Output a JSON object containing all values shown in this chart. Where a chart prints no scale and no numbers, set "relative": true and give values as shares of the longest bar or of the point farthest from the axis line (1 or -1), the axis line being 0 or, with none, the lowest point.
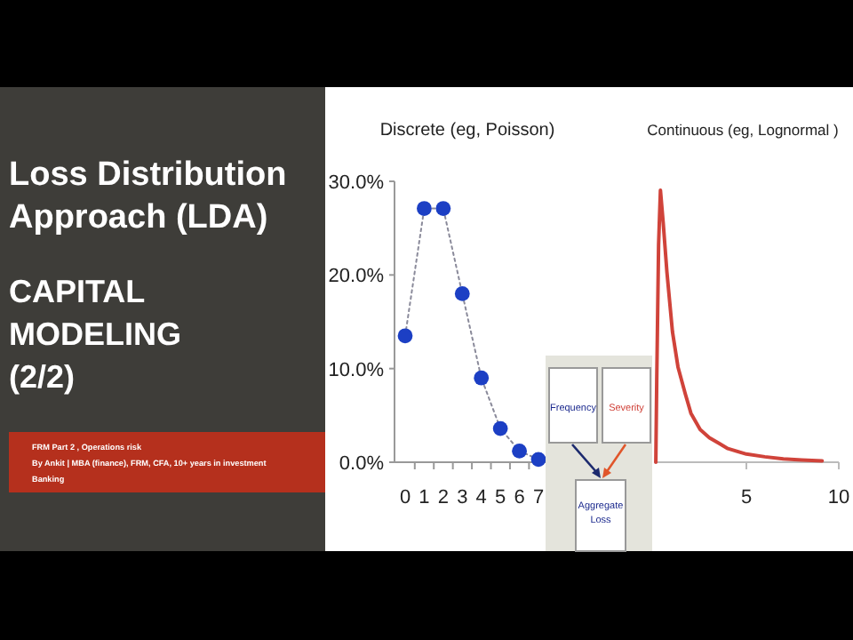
{
  "chart_data": [
    {
      "type": "other",
      "title": "Loss Distribution Approach (LDA)",
      "subtitle": "CAPITAL MODELING (2/2)",
      "annotations": [
        "FRM Part 2 , Operations risk",
        "By Ankit | MBA (finance), FRM, CFA, 10+ years in investment Banking"
      ]
    },
    {
      "type": "line",
      "title": "Discrete (eg, Poisson)",
      "categories": [
        "0",
        "1",
        "2",
        "3",
        "4",
        "5",
        "6",
        "7"
      ],
      "series": [
        {
          "color": "#1c3fc4",
          "values": [
            13.5,
            27.1,
            27.1,
            18.0,
            9.0,
            3.6,
            1.2,
            0.3
          ]
        }
      ],
      "ylim": [
        0,
        30
      ],
      "yticks": [
        {
          "value": 0,
          "label": "0.0%"
        },
        {
          "value": 10,
          "label": "10.0%"
        },
        {
          "value": 20,
          "label": "20.0%"
        },
        {
          "value": 30,
          "label": "30.0%"
        }
      ],
      "marker": "circle",
      "line_style": "dotted"
    },
    {
      "type": "line",
      "title": "Continuous (eg, Lognormal )",
      "relative": true,
      "x": [
        0.1,
        0.15,
        0.25,
        0.35,
        0.5,
        0.7,
        1.0,
        1.3,
        1.7,
        2.0,
        2.5,
        3.0,
        3.5,
        4.0,
        5.0,
        6.0,
        7.0,
        8.0,
        9.1
      ],
      "series": [
        {
          "color": "#d0433a",
          "values": [
            0,
            0.3,
            0.8,
            1,
            0.88,
            0.7,
            0.48,
            0.35,
            0.25,
            0.18,
            0.12,
            0.09,
            0.07,
            0.05,
            0.03,
            0.02,
            0.012,
            0.008,
            0.005
          ]
        }
      ],
      "xlim": [
        0,
        10
      ],
      "xticks": [
        5,
        10
      ]
    },
    {
      "type": "other",
      "annotations": [
        "Frequency",
        "Severity",
        "Aggregate Loss"
      ]
    }
  ]
}
